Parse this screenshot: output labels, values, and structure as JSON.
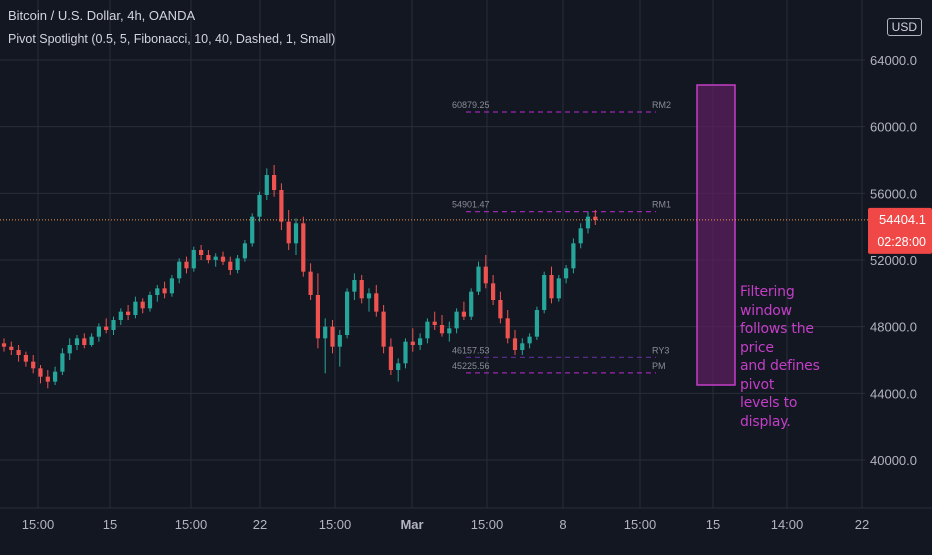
{
  "header": {
    "title": "Bitcoin / U.S. Dollar, 4h, OANDA",
    "indicator": "Pivot Spotlight (0.5, 5, Fibonacci, 10, 40, Dashed, 1, Small)",
    "currency_badge": "USD"
  },
  "annotation_lines": [
    "Filtering window",
    "follows the price",
    "and defines pivot",
    "levels to display."
  ],
  "colors": {
    "background": "#131722",
    "up_candle": "#26a69a",
    "down_candle": "#ef5350",
    "pivot_line": "#9c27b0",
    "window_fill": "#5b1f5e",
    "window_border": "#c43ec7",
    "price_label_bg": "#f04747",
    "grid": "#2a2e39"
  },
  "chart_data": {
    "type": "candlestick",
    "symbol": "Bitcoin / U.S. Dollar",
    "timeframe": "4h",
    "y_axis": {
      "ticks": [
        "40000.0",
        "44000.0",
        "48000.0",
        "52000.0",
        "56000.0",
        "60000.0",
        "64000.0"
      ],
      "range": [
        38000,
        66000
      ]
    },
    "x_axis": {
      "ticks": [
        "15:00",
        "15",
        "15:00",
        "22",
        "15:00",
        "Mar",
        "15:00",
        "8",
        "15:00",
        "15",
        "14:00",
        "22"
      ]
    },
    "last_price": {
      "value": 54404.1,
      "label": "54404.1",
      "countdown": "02:28:00"
    },
    "pivot_levels": [
      {
        "name": "RM2",
        "value": 60879.25,
        "label": "60879.25"
      },
      {
        "name": "RM1",
        "value": 54901.47,
        "label": "54901.47"
      },
      {
        "name": "RY3",
        "value": 46157.53,
        "label": "46157.53"
      },
      {
        "name": "PM",
        "value": 45225.56,
        "label": "45225.56"
      }
    ],
    "filter_window": {
      "low": 44500,
      "high": 62500
    },
    "grid": true,
    "candles": [
      [
        47000,
        47300,
        46500,
        46800
      ],
      [
        46800,
        47100,
        46300,
        46600
      ],
      [
        46600,
        46900,
        45900,
        46300
      ],
      [
        46300,
        46500,
        45600,
        45900
      ],
      [
        45900,
        46300,
        45200,
        45500
      ],
      [
        45500,
        45700,
        44600,
        45000
      ],
      [
        45000,
        45400,
        44300,
        44700
      ],
      [
        44700,
        45600,
        44500,
        45300
      ],
      [
        45300,
        46700,
        45100,
        46400
      ],
      [
        46400,
        47300,
        46000,
        46900
      ],
      [
        46900,
        47500,
        46600,
        47300
      ],
      [
        47300,
        47600,
        46700,
        46900
      ],
      [
        46900,
        47600,
        46800,
        47400
      ],
      [
        47400,
        48200,
        47100,
        48000
      ],
      [
        48000,
        48500,
        47600,
        47800
      ],
      [
        47800,
        48600,
        47500,
        48400
      ],
      [
        48400,
        49100,
        48100,
        48900
      ],
      [
        48900,
        49300,
        48400,
        48700
      ],
      [
        48700,
        49800,
        48500,
        49500
      ],
      [
        49500,
        49700,
        48800,
        49100
      ],
      [
        49100,
        50100,
        48900,
        49900
      ],
      [
        49900,
        50500,
        49500,
        50300
      ],
      [
        50300,
        50700,
        49700,
        50000
      ],
      [
        50000,
        51100,
        49800,
        50900
      ],
      [
        50900,
        52100,
        50600,
        51900
      ],
      [
        51900,
        52200,
        51200,
        51500
      ],
      [
        51500,
        52800,
        51300,
        52600
      ],
      [
        52600,
        52900,
        52000,
        52300
      ],
      [
        52300,
        52600,
        51800,
        52000
      ],
      [
        52000,
        52400,
        51600,
        52200
      ],
      [
        52200,
        52500,
        51700,
        51900
      ],
      [
        51900,
        52200,
        51100,
        51400
      ],
      [
        51400,
        52300,
        51200,
        52100
      ],
      [
        52100,
        53200,
        51900,
        53000
      ],
      [
        53000,
        54800,
        52800,
        54600
      ],
      [
        54600,
        56100,
        54300,
        55900
      ],
      [
        55900,
        57500,
        55600,
        57100
      ],
      [
        57100,
        57700,
        55800,
        56200
      ],
      [
        56200,
        56600,
        53800,
        54300
      ],
      [
        54300,
        55000,
        52600,
        53000
      ],
      [
        53000,
        54500,
        52300,
        54200
      ],
      [
        54200,
        54600,
        51000,
        51300
      ],
      [
        51300,
        51800,
        49600,
        49900
      ],
      [
        49900,
        51200,
        46700,
        47300
      ],
      [
        47300,
        48500,
        45200,
        48000
      ],
      [
        48000,
        48400,
        46400,
        46800
      ],
      [
        46800,
        47800,
        45600,
        47500
      ],
      [
        47500,
        50300,
        47300,
        50100
      ],
      [
        50100,
        51200,
        49600,
        50800
      ],
      [
        50800,
        51100,
        49400,
        49700
      ],
      [
        49700,
        50300,
        48900,
        50000
      ],
      [
        50000,
        50500,
        48600,
        48900
      ],
      [
        48900,
        49300,
        46400,
        46800
      ],
      [
        46800,
        47300,
        45100,
        45400
      ],
      [
        45400,
        46100,
        44700,
        45800
      ],
      [
        45800,
        47300,
        45500,
        47100
      ],
      [
        47100,
        47900,
        46500,
        46900
      ],
      [
        46900,
        47600,
        46600,
        47300
      ],
      [
        47300,
        48500,
        47000,
        48300
      ],
      [
        48300,
        48900,
        47800,
        48100
      ],
      [
        48100,
        48700,
        47400,
        47600
      ],
      [
        47600,
        48300,
        47100,
        47900
      ],
      [
        47900,
        49100,
        47600,
        48900
      ],
      [
        48900,
        49500,
        48400,
        48600
      ],
      [
        48600,
        50300,
        48400,
        50100
      ],
      [
        50100,
        51900,
        49900,
        51600
      ],
      [
        51600,
        52300,
        50300,
        50600
      ],
      [
        50600,
        51100,
        49300,
        49600
      ],
      [
        49600,
        50100,
        48200,
        48500
      ],
      [
        48500,
        49000,
        47000,
        47300
      ],
      [
        47300,
        47800,
        46300,
        46600
      ],
      [
        46600,
        47300,
        46300,
        47000
      ],
      [
        47000,
        47600,
        46700,
        47400
      ],
      [
        47400,
        49200,
        47200,
        49000
      ],
      [
        49000,
        51300,
        48800,
        51100
      ],
      [
        51100,
        51600,
        49400,
        49700
      ],
      [
        49700,
        51100,
        49500,
        50900
      ],
      [
        50900,
        51700,
        50600,
        51500
      ],
      [
        51500,
        53300,
        51200,
        53000
      ],
      [
        53000,
        54200,
        52700,
        53900
      ],
      [
        53900,
        54900,
        53600,
        54600
      ],
      [
        54600,
        55000,
        54100,
        54404.1
      ]
    ]
  }
}
